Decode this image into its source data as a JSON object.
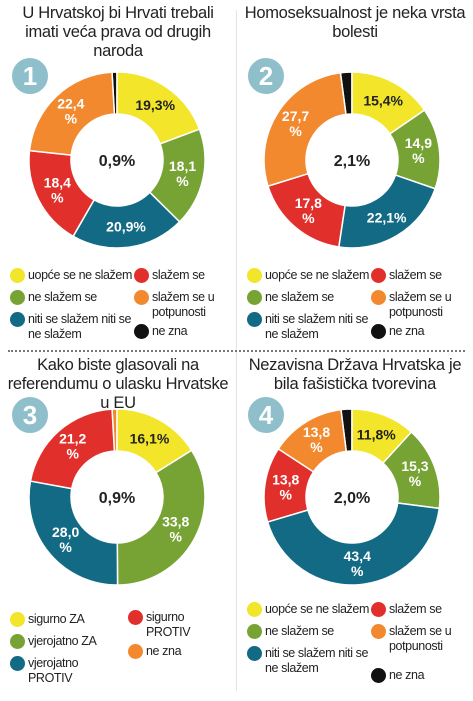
{
  "colors": {
    "yellow": "#f2e52a",
    "green": "#77a234",
    "teal": "#136a84",
    "red": "#e1302b",
    "orange": "#f3892e",
    "black": "#111111",
    "badge": "#8fbfca"
  },
  "legend_labels": {
    "uopce": "uopće se ne slažem",
    "ne_slazem": "ne slažem se",
    "niti": "niti se slažem niti se ne slažem",
    "slazem": "slažem se",
    "potpunosti": "slažem se u potpunosti",
    "ne_zna": "ne zna",
    "sigurno_za": "sigurno ZA",
    "vjerojatno_za": "vjerojatno ZA",
    "vjerojatno_protiv": "vjerojatno PROTIV",
    "sigurno_protiv": "sigurno PROTIV"
  },
  "chart_data": [
    {
      "type": "pie",
      "number": "1",
      "title": "U Hrvatskoj bi Hrvati trebali imati veća prava od drugih naroda",
      "center_label": "0,9%",
      "slices": [
        {
          "name": "uopće se ne slažem",
          "value": 19.3,
          "label": "19,3%",
          "color": "yellow"
        },
        {
          "name": "ne slažem se",
          "value": 18.1,
          "label": "18,1 %",
          "color": "green"
        },
        {
          "name": "niti se slažem niti se ne slažem",
          "value": 20.9,
          "label": "20,9%",
          "color": "teal"
        },
        {
          "name": "slažem se",
          "value": 18.4,
          "label": "18,4 %",
          "color": "red"
        },
        {
          "name": "slažem se u potpunosti",
          "value": 22.4,
          "label": "22,4 %",
          "color": "orange"
        },
        {
          "name": "ne zna",
          "value": 0.9,
          "label": "",
          "color": "black"
        }
      ]
    },
    {
      "type": "pie",
      "number": "2",
      "title": "Homoseksualnost je neka vrsta bolesti",
      "center_label": "2,1%",
      "slices": [
        {
          "name": "uopće se ne slažem",
          "value": 15.4,
          "label": "15,4%",
          "color": "yellow"
        },
        {
          "name": "ne slažem se",
          "value": 14.9,
          "label": "14,9 %",
          "color": "green"
        },
        {
          "name": "niti se slažem niti se ne slažem",
          "value": 22.1,
          "label": "22,1%",
          "color": "teal"
        },
        {
          "name": "slažem se",
          "value": 17.8,
          "label": "17,8 %",
          "color": "red"
        },
        {
          "name": "slažem se u potpunosti",
          "value": 27.7,
          "label": "27,7 %",
          "color": "orange"
        },
        {
          "name": "ne zna",
          "value": 2.1,
          "label": "",
          "color": "black"
        }
      ]
    },
    {
      "type": "pie",
      "number": "3",
      "title": "Kako biste glasovali na referendumu o ulasku Hrvatske u EU",
      "center_label": "0,9%",
      "slices": [
        {
          "name": "sigurno ZA",
          "value": 16.1,
          "label": "16,1%",
          "color": "yellow"
        },
        {
          "name": "vjerojatno ZA",
          "value": 33.8,
          "label": "33,8 %",
          "color": "green"
        },
        {
          "name": "vjerojatno PROTIV",
          "value": 28.0,
          "label": "28,0 %",
          "color": "teal"
        },
        {
          "name": "sigurno PROTIV",
          "value": 21.2,
          "label": "21,2 %",
          "color": "red"
        },
        {
          "name": "ne zna",
          "value": 0.9,
          "label": "",
          "color": "orange"
        }
      ]
    },
    {
      "type": "pie",
      "number": "4",
      "title": "Nezavisna Država Hrvatska je bila fašistička tvorevina",
      "center_label": "2,0%",
      "slices": [
        {
          "name": "uopće se ne slažem",
          "value": 11.8,
          "label": "11,8%",
          "color": "yellow"
        },
        {
          "name": "ne slažem se",
          "value": 15.3,
          "label": "15,3 %",
          "color": "green"
        },
        {
          "name": "niti se slažem niti se ne slažem",
          "value": 43.4,
          "label": "43,4 %",
          "color": "teal"
        },
        {
          "name": "slažem se",
          "value": 13.8,
          "label": "13,8 %",
          "color": "red"
        },
        {
          "name": "slažem se u potpunosti",
          "value": 13.8,
          "label": "13,8 %",
          "color": "orange"
        },
        {
          "name": "ne zna",
          "value": 2.0,
          "label": "",
          "color": "black"
        }
      ]
    }
  ]
}
